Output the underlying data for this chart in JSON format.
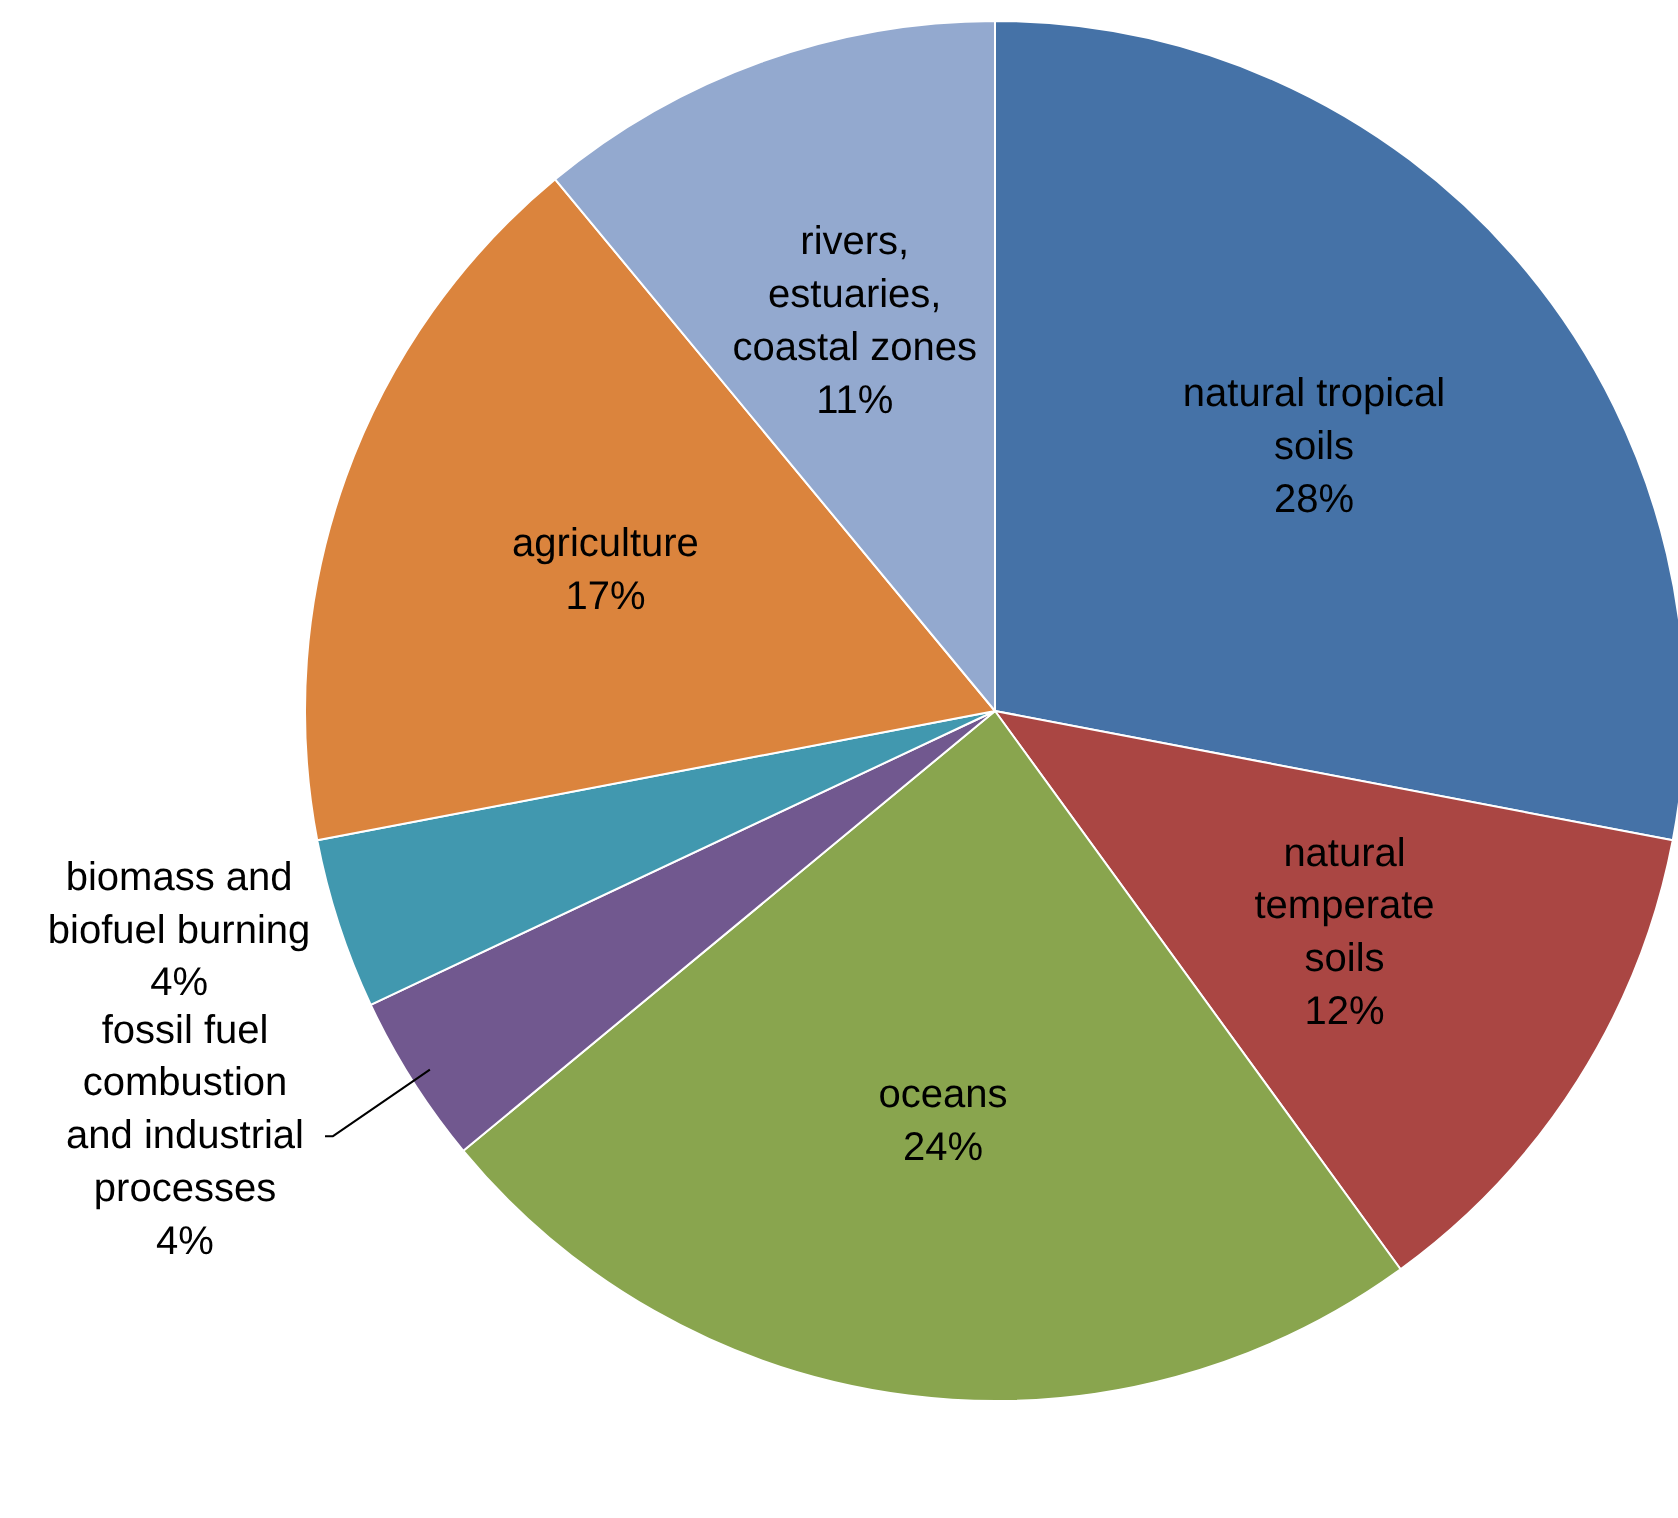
{
  "chart_data": {
    "type": "pie",
    "categories": [
      "natural tropical\nsoils",
      "natural\ntemperate\nsoils",
      "oceans",
      "fossil fuel\ncombustion\nand industrial\nprocesses",
      "biomass and\nbiofuel burning",
      "agriculture",
      "rivers,\nestuaries,\ncoastal zones"
    ],
    "values": [
      28,
      12,
      24,
      4,
      4,
      17,
      11
    ],
    "value_labels": [
      "28%",
      "12%",
      "24%",
      "4%",
      "4%",
      "17%",
      "11%"
    ],
    "colors": [
      "#4572a7",
      "#aa4643",
      "#89a54e",
      "#71588f",
      "#4198af",
      "#db843d",
      "#93a9cf"
    ]
  }
}
